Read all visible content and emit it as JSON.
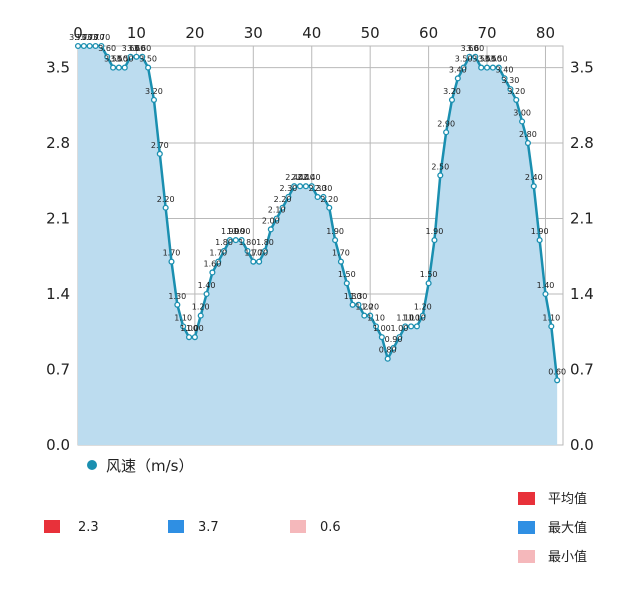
{
  "chart_data": {
    "type": "area",
    "title": "",
    "xlabel": "",
    "ylabel": "",
    "xlim": [
      0,
      83
    ],
    "ylim": [
      0,
      3.7
    ],
    "x_ticks": [
      0,
      10,
      20,
      30,
      40,
      50,
      60,
      70,
      80
    ],
    "y_ticks": [
      0.0,
      0.7,
      1.4,
      2.1,
      2.8,
      3.5
    ],
    "grid": true,
    "series": [
      {
        "name": "风速（m/s）",
        "color": "#1a8fb0",
        "fill": "#bcdcef",
        "values": [
          3.7,
          3.7,
          3.7,
          3.7,
          3.7,
          3.6,
          3.5,
          3.5,
          3.5,
          3.6,
          3.6,
          3.6,
          3.5,
          3.2,
          2.7,
          2.2,
          1.7,
          1.3,
          1.1,
          1.0,
          1.0,
          1.2,
          1.4,
          1.6,
          1.7,
          1.8,
          1.9,
          1.9,
          1.9,
          1.8,
          1.7,
          1.7,
          1.8,
          2.0,
          2.1,
          2.2,
          2.3,
          2.4,
          2.4,
          2.4,
          2.4,
          2.3,
          2.3,
          2.2,
          1.9,
          1.7,
          1.5,
          1.3,
          1.3,
          1.2,
          1.2,
          1.1,
          1.0,
          0.8,
          0.9,
          1.0,
          1.1,
          1.1,
          1.1,
          1.2,
          1.5,
          1.9,
          2.5,
          2.9,
          3.2,
          3.4,
          3.5,
          3.6,
          3.6,
          3.5,
          3.5,
          3.5,
          3.5,
          3.4,
          3.3,
          3.2,
          3.0,
          2.8,
          2.4,
          1.9,
          1.4,
          1.1,
          0.6
        ],
        "labels": [
          "3.70",
          "3.70",
          "3.70",
          "3.70",
          "3.70",
          "3.60",
          "3.50",
          "3.50",
          "3.50",
          "3.60",
          "3.60",
          "3.60",
          "3.50",
          "3.20",
          "2.70",
          "2.20",
          "1.70",
          "1.30",
          "1.10",
          "1.00",
          "1.00",
          "1.20",
          "1.40",
          "1.60",
          "1.70",
          "1.80",
          "1.90",
          "1.90",
          "1.90",
          "1.80",
          "1.70",
          "1.70",
          "1.80",
          "2.00",
          "2.10",
          "2.20",
          "2.30",
          "2.40",
          "2.40",
          "2.40",
          "2.40",
          "2.30",
          "2.30",
          "2.20",
          "1.90",
          "1.70",
          "1.50",
          "1.30",
          "1.30",
          "1.20",
          "1.20",
          "1.10",
          "1.00",
          "0.80",
          "0.90",
          "1.00",
          "1.10",
          "1.10",
          "1.10",
          "1.20",
          "1.50",
          "1.90",
          "2.50",
          "2.90",
          "3.20",
          "3.40",
          "3.50",
          "3.60",
          "3.60",
          "3.50",
          "3.50",
          "3.50",
          "3.50",
          "3.40",
          "3.30",
          "3.20",
          "3.00",
          "2.80",
          "2.40",
          "1.90",
          "1.40",
          "1.10",
          "0.60"
        ]
      }
    ],
    "legend": {
      "position": "bottom-left"
    },
    "stats": [
      {
        "label": "平均值",
        "value": "2.3",
        "color": "#e8313a"
      },
      {
        "label": "最大值",
        "value": "3.7",
        "color": "#2f8fe3"
      },
      {
        "label": "最小值",
        "value": "0.6",
        "color": "#f5b8bb"
      }
    ]
  }
}
